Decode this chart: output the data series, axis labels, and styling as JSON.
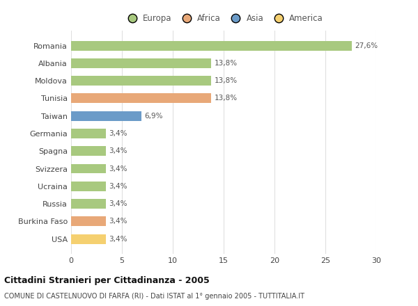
{
  "countries": [
    "Romania",
    "Albania",
    "Moldova",
    "Tunisia",
    "Taiwan",
    "Germania",
    "Spagna",
    "Svizzera",
    "Ucraina",
    "Russia",
    "Burkina Faso",
    "USA"
  ],
  "values": [
    27.6,
    13.8,
    13.8,
    13.8,
    6.9,
    3.4,
    3.4,
    3.4,
    3.4,
    3.4,
    3.4,
    3.4
  ],
  "pct_labels": [
    "27,6%",
    "13,8%",
    "13,8%",
    "13,8%",
    "6,9%",
    "3,4%",
    "3,4%",
    "3,4%",
    "3,4%",
    "3,4%",
    "3,4%",
    "3,4%"
  ],
  "colors": [
    "#a8c97f",
    "#a8c97f",
    "#a8c97f",
    "#e8a878",
    "#6b9bc8",
    "#a8c97f",
    "#a8c97f",
    "#a8c97f",
    "#a8c97f",
    "#a8c97f",
    "#e8a878",
    "#f5d070"
  ],
  "legend": [
    {
      "label": "Europa",
      "color": "#a8c97f"
    },
    {
      "label": "Africa",
      "color": "#e8a878"
    },
    {
      "label": "Asia",
      "color": "#6b9bc8"
    },
    {
      "label": "America",
      "color": "#f5d070"
    }
  ],
  "xlim": [
    0,
    30
  ],
  "xticks": [
    0,
    5,
    10,
    15,
    20,
    25,
    30
  ],
  "title": "Cittadini Stranieri per Cittadinanza - 2005",
  "subtitle": "COMUNE DI CASTELNUOVO DI FARFA (RI) - Dati ISTAT al 1° gennaio 2005 - TUTTITALIA.IT",
  "background_color": "#ffffff",
  "grid_color": "#e0e0e0",
  "bar_height": 0.55
}
